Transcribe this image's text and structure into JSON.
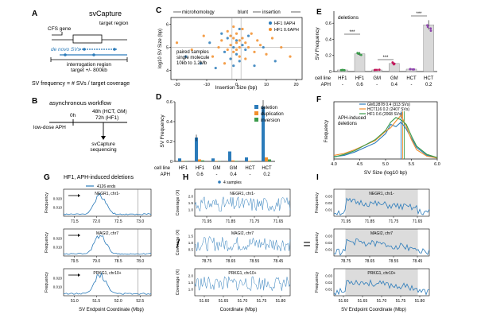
{
  "colors": {
    "blue": "#2b7bba",
    "orange": "#f28e2b",
    "green": "#3a9a4a",
    "red": "#d62728",
    "pink": "#c2185b",
    "teal": "#2a9d8f",
    "purple": "#8e44ad",
    "grey": "#7f7f7f",
    "shade": "#dcdcdc"
  },
  "panelA": {
    "letter": "A",
    "title": "svCapture",
    "cfs_gene": "CFS gene",
    "target_region": "target region",
    "de_novo": "de novo SVs",
    "interrogation": "interrogation region",
    "target_span": "target +/- 800kb",
    "formula": "SV frequency = # SVs / target coverage"
  },
  "panelB": {
    "letter": "B",
    "title": "asynchronous workflow",
    "t0": "0h",
    "t48": "48h (HCT, GM)",
    "t72": "72h (HF1)",
    "low_dose": "low-dose APH",
    "seq1": "svCapture",
    "seq2": "sequencing"
  },
  "panelC": {
    "letter": "C",
    "bracket_left": "microhomology",
    "bracket_mid": "blunt",
    "bracket_right": "insertion",
    "note1": "paired samples",
    "note2": "single molecule",
    "note3": "10kb to 1.2Mb",
    "chart_data": {
      "type": "scatter",
      "xlabel": "Insertion Size (bp)",
      "ylabel": "log10 SV Size (bp)",
      "xlim": [
        -22,
        22
      ],
      "ylim": [
        3.6,
        6.3
      ],
      "xticks": [
        -20,
        -10,
        0,
        10,
        20
      ],
      "yticks": [
        4,
        5,
        6
      ],
      "series": [
        {
          "name": "HF1 0APH",
          "color": "#2b7bba",
          "points": [
            [
              -17,
              4.6
            ],
            [
              -12,
              4.3
            ],
            [
              -9,
              5.2
            ],
            [
              -7,
              4.1
            ],
            [
              -5,
              5.6
            ],
            [
              -4,
              4.8
            ],
            [
              -3,
              5.4
            ],
            [
              -2,
              4.5
            ],
            [
              -1,
              5.0
            ],
            [
              -1,
              4.2
            ],
            [
              0,
              5.3
            ],
            [
              0,
              4.7
            ],
            [
              1,
              5.8
            ],
            [
              1,
              4.4
            ],
            [
              2,
              5.1
            ],
            [
              3,
              4.9
            ],
            [
              4,
              5.5
            ],
            [
              6,
              4.2
            ],
            [
              9,
              5.0
            ],
            [
              13,
              4.4
            ]
          ]
        },
        {
          "name": "HF1 0.6APH",
          "color": "#f28e2b",
          "points": [
            [
              -20,
              5.2
            ],
            [
              -15,
              4.9
            ],
            [
              -11,
              5.5
            ],
            [
              -8,
              4.6
            ],
            [
              -6,
              5.0
            ],
            [
              -5,
              5.3
            ],
            [
              -4,
              4.3
            ],
            [
              -3,
              5.7
            ],
            [
              -3,
              4.9
            ],
            [
              -2,
              5.5
            ],
            [
              -2,
              5.1
            ],
            [
              -1,
              5.4
            ],
            [
              -1,
              4.8
            ],
            [
              -1,
              5.9
            ],
            [
              0,
              5.2
            ],
            [
              0,
              5.6
            ],
            [
              0,
              4.9
            ],
            [
              1,
              5.3
            ],
            [
              1,
              5.0
            ],
            [
              1,
              4.6
            ],
            [
              2,
              5.4
            ],
            [
              2,
              5.8
            ],
            [
              3,
              5.2
            ],
            [
              3,
              4.5
            ],
            [
              4,
              5.0
            ],
            [
              5,
              5.6
            ],
            [
              6,
              4.8
            ],
            [
              7,
              5.3
            ],
            [
              8,
              5.1
            ],
            [
              10,
              4.7
            ],
            [
              12,
              5.4
            ],
            [
              15,
              5.0
            ],
            [
              18,
              4.6
            ]
          ]
        }
      ]
    }
  },
  "panelD": {
    "letter": "D",
    "chart_data": {
      "type": "bar",
      "ylabel": "SV Frequency",
      "ylim": [
        0,
        0.6
      ],
      "yticks": [
        0,
        0.2,
        0.4,
        0.6
      ],
      "categories": [
        "HF1",
        "HF1",
        "GM",
        "GM",
        "HCT",
        "HCT"
      ],
      "aph": [
        "-",
        "0.6",
        "-",
        "0.4",
        "-",
        "0.2"
      ],
      "cell_line_label": "cell line",
      "aph_label": "APH",
      "series": [
        {
          "name": "deletion",
          "color": "#2b7bba",
          "values": [
            0.03,
            0.24,
            0.03,
            0.1,
            0.04,
            0.55
          ]
        },
        {
          "name": "duplication",
          "color": "#f28e2b",
          "values": [
            0.005,
            0.02,
            0.005,
            0.01,
            0.005,
            0.04
          ]
        },
        {
          "name": "inversion",
          "color": "#3a9a4a",
          "values": [
            0.003,
            0.01,
            0.003,
            0.005,
            0.003,
            0.02
          ]
        }
      ]
    }
  },
  "panelE": {
    "letter": "E",
    "chart_data": {
      "type": "bar",
      "title": "deletions",
      "ylabel": "SV Frequency",
      "ylim": [
        0,
        0.75
      ],
      "yticks": [
        0,
        0.2,
        0.4,
        0.6
      ],
      "categories": [
        "HF1",
        "HF1",
        "GM",
        "GM",
        "HCT",
        "HCT"
      ],
      "aph": [
        "-",
        "0.6",
        "-",
        "0.4",
        "-",
        "0.2"
      ],
      "values": [
        0.02,
        0.22,
        0.02,
        0.1,
        0.03,
        0.58
      ],
      "point_colors": [
        "#3a9a4a",
        "#3a9a4a",
        "#c2185b",
        "#c2185b",
        "#8e44ad",
        "#8e44ad"
      ],
      "sig": [
        "***",
        "***",
        "***"
      ],
      "cell_line_label": "cell line",
      "aph_label": "APH"
    }
  },
  "panelF": {
    "letter": "F",
    "note1": "APH-induced",
    "note2": "deletions",
    "chart_data": {
      "type": "line",
      "xlabel": "SV Size (log10 bp)",
      "ylabel": "Frequency",
      "xlim": [
        4.0,
        6.0
      ],
      "xticks": [
        4.0,
        4.5,
        5.0,
        5.5,
        6.0
      ],
      "x": [
        4.0,
        4.2,
        4.4,
        4.6,
        4.8,
        5.0,
        5.1,
        5.2,
        5.3,
        5.4,
        5.5,
        5.6,
        5.8,
        6.0
      ],
      "series": [
        {
          "name": "GM12878",
          "legend": "GM12878  0.4 (313 SVs)",
          "color": "#2b7bba",
          "values": [
            0.05,
            0.08,
            0.15,
            0.25,
            0.35,
            0.55,
            0.75,
            0.7,
            0.8,
            0.65,
            0.45,
            0.25,
            0.08,
            0.02
          ]
        },
        {
          "name": "HCT116",
          "legend": "HCT116  0.2 (2407 SVs)",
          "color": "#f28e2b",
          "values": [
            0.08,
            0.12,
            0.2,
            0.3,
            0.4,
            0.6,
            0.68,
            0.82,
            0.95,
            0.7,
            0.42,
            0.2,
            0.06,
            0.02
          ]
        },
        {
          "name": "HF1",
          "legend": "HF1  0.6 (2068 SVs)",
          "color": "#3a9a4a",
          "values": [
            0.04,
            0.1,
            0.18,
            0.3,
            0.42,
            0.62,
            0.8,
            0.9,
            0.85,
            0.75,
            0.5,
            0.28,
            0.1,
            0.03
          ]
        }
      ],
      "vlines": [
        5.3,
        5.33,
        5.36
      ]
    }
  },
  "panelG": {
    "letter": "G",
    "title": "HF1, APH-induced deletions",
    "legend": "4126 ends",
    "xlabel": "SV Endpoint Coordinate (Mbp)",
    "ylabel": "Frequency",
    "rows": [
      {
        "gene": "NEGR1, chr1-",
        "xticks": [
          "71.5",
          "72.0",
          "72.5",
          "73.0"
        ],
        "yticks": [
          "0.010",
          "0.020"
        ],
        "peak": 0.4
      },
      {
        "gene": "MAGI2, chr7",
        "xticks": [
          "79.5",
          "79.0",
          "78.5",
          "78.0"
        ],
        "yticks": [
          "0.010",
          "0.020"
        ],
        "peak": 0.4
      },
      {
        "gene": "PRKG1, chr10+",
        "xticks": [
          "51.0",
          "51.5",
          "52.0",
          "52.5"
        ],
        "yticks": [
          "0.010",
          "0.020"
        ],
        "peak": 0.45
      }
    ]
  },
  "panelH": {
    "letter": "H",
    "legend": "4 samples",
    "xlabel": "Coordinate (Mbp)",
    "ylabel": "Coverage (X)",
    "rows": [
      {
        "gene": "NEGR1, chr1-",
        "xticks": [
          "71.95",
          "71.85",
          "71.75",
          "71.65"
        ],
        "yticks": [
          "1.0",
          "1.5",
          "2.0"
        ]
      },
      {
        "gene": "MAGI2, chr7",
        "xticks": [
          "78.75",
          "78.65",
          "78.55",
          "78.45"
        ],
        "yticks": [
          "0.5",
          "1.0",
          "1.5"
        ]
      },
      {
        "gene": "PRKG1, chr10+",
        "xticks": [
          "51.60",
          "51.65",
          "51.70",
          "51.75",
          "51.80"
        ],
        "yticks": [
          "1.0",
          "1.5",
          "2.0"
        ]
      }
    ]
  },
  "panelI": {
    "letter": "I",
    "xlabel": "SV Endpoint Coordinate (Mbp)",
    "ylabel": "Frequency",
    "rows": [
      {
        "gene": "NEGR1, chr1-",
        "xticks": [
          "71.95",
          "71.85",
          "71.75",
          "71.65"
        ],
        "yticks": [
          "0.01",
          "0.02",
          "0.03"
        ]
      },
      {
        "gene": "MAGI2, chr7",
        "xticks": [
          "78.75",
          "78.65",
          "78.55",
          "78.45"
        ],
        "yticks": [
          "0.01",
          "0.02",
          "0.03"
        ]
      },
      {
        "gene": "PRKG1, chr10+",
        "xticks": [
          "51.60",
          "51.65",
          "51.70",
          "51.75",
          "51.80"
        ],
        "yticks": [
          "0.01",
          "0.02",
          "0.03"
        ]
      }
    ]
  },
  "operators": {
    "divide": "/",
    "equals": "="
  }
}
